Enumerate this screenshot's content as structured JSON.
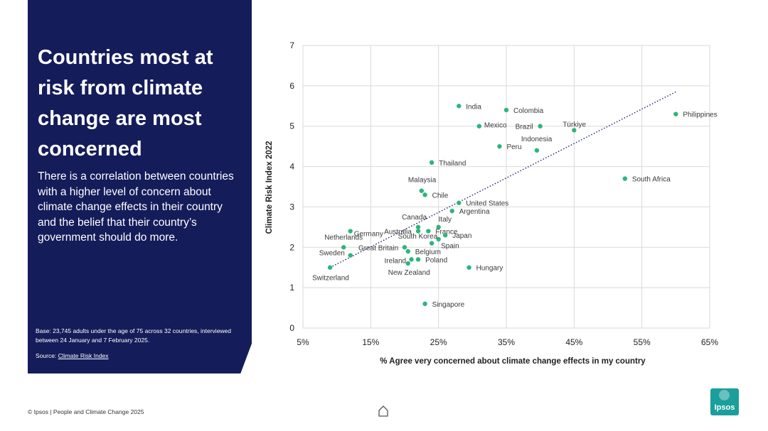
{
  "panel": {
    "headline": "Countries most at risk from climate change are most concerned",
    "lede": "There is a correlation between countries with a higher level of concern about climate change effects in their country and the belief that their country’s government should do more.",
    "base": "Base: 23,745 adults under the age of 75 across 32 countries, interviewed between 24 January and 7 February 2025.",
    "source_label": "Source:",
    "source_link": "Climate Risk Index"
  },
  "footer": {
    "copyright": "© Ipsos | People and Climate Change 2025"
  },
  "logo": {
    "text": "Ipsos",
    "color": "#1a9f9c"
  },
  "colors": {
    "panel": "#141c5a",
    "points": "#2eb47c",
    "trend": "#1a2066",
    "grid": "#d9d9d9"
  },
  "chart_data": {
    "type": "scatter",
    "title": "",
    "xlabel": "% Agree very concerned about climate change effects in my country",
    "ylabel": "Climate  Risk Index 2022",
    "xlim": [
      5,
      65
    ],
    "ylim": [
      0,
      7
    ],
    "x_ticks": [
      5,
      15,
      25,
      35,
      45,
      55,
      65
    ],
    "x_tick_labels": [
      "5%",
      "15%",
      "25%",
      "35%",
      "45%",
      "55%",
      "65%"
    ],
    "y_ticks": [
      0,
      1,
      2,
      3,
      4,
      5,
      6,
      7
    ],
    "y_tick_labels": [
      "0",
      "1",
      "2",
      "3",
      "4",
      "5",
      "6",
      "7"
    ],
    "grid": true,
    "trendline": {
      "style": "dotted",
      "from": [
        9,
        1.5
      ],
      "to": [
        60,
        5.85
      ]
    },
    "points": [
      {
        "label": "India",
        "x": 28,
        "y": 5.5
      },
      {
        "label": "Colombia",
        "x": 35,
        "y": 5.4
      },
      {
        "label": "Mexico",
        "x": 31,
        "y": 5.0
      },
      {
        "label": "Brazil",
        "x": 40,
        "y": 5.0
      },
      {
        "label": "Türkiye",
        "x": 45,
        "y": 4.9
      },
      {
        "label": "Philippines",
        "x": 60,
        "y": 5.3
      },
      {
        "label": "Peru",
        "x": 34,
        "y": 4.5
      },
      {
        "label": "Indonesia",
        "x": 39.5,
        "y": 4.4
      },
      {
        "label": "Thailand",
        "x": 24,
        "y": 4.1
      },
      {
        "label": "South Africa",
        "x": 52.5,
        "y": 3.7
      },
      {
        "label": "Malaysia",
        "x": 22.5,
        "y": 3.4
      },
      {
        "label": "Chile",
        "x": 23,
        "y": 3.3
      },
      {
        "label": "United States",
        "x": 28,
        "y": 3.1
      },
      {
        "label": "Argentina",
        "x": 27,
        "y": 2.9
      },
      {
        "label": "Canada",
        "x": 22,
        "y": 2.5
      },
      {
        "label": "Italy",
        "x": 25,
        "y": 2.5
      },
      {
        "label": "Germany",
        "x": 12,
        "y": 2.4
      },
      {
        "label": "Australia",
        "x": 22,
        "y": 2.4
      },
      {
        "label": "France",
        "x": 23.5,
        "y": 2.4
      },
      {
        "label": "Japan",
        "x": 26,
        "y": 2.3
      },
      {
        "label": "Netherlands",
        "x": 11,
        "y": 2.0
      },
      {
        "label": "South Korea",
        "x": 25,
        "y": 2.2
      },
      {
        "label": "Spain",
        "x": 24,
        "y": 2.1
      },
      {
        "label": "Great Britain",
        "x": 20,
        "y": 2.0
      },
      {
        "label": "Belgium",
        "x": 20.5,
        "y": 1.9
      },
      {
        "label": "Sweden",
        "x": 12,
        "y": 1.8
      },
      {
        "label": "Ireland",
        "x": 21,
        "y": 1.7
      },
      {
        "label": "Poland",
        "x": 22,
        "y": 1.7
      },
      {
        "label": "New Zealand",
        "x": 20.5,
        "y": 1.6
      },
      {
        "label": "Switzerland",
        "x": 9,
        "y": 1.5
      },
      {
        "label": "Hungary",
        "x": 29.5,
        "y": 1.5
      },
      {
        "label": "Singapore",
        "x": 23,
        "y": 0.6
      }
    ]
  }
}
